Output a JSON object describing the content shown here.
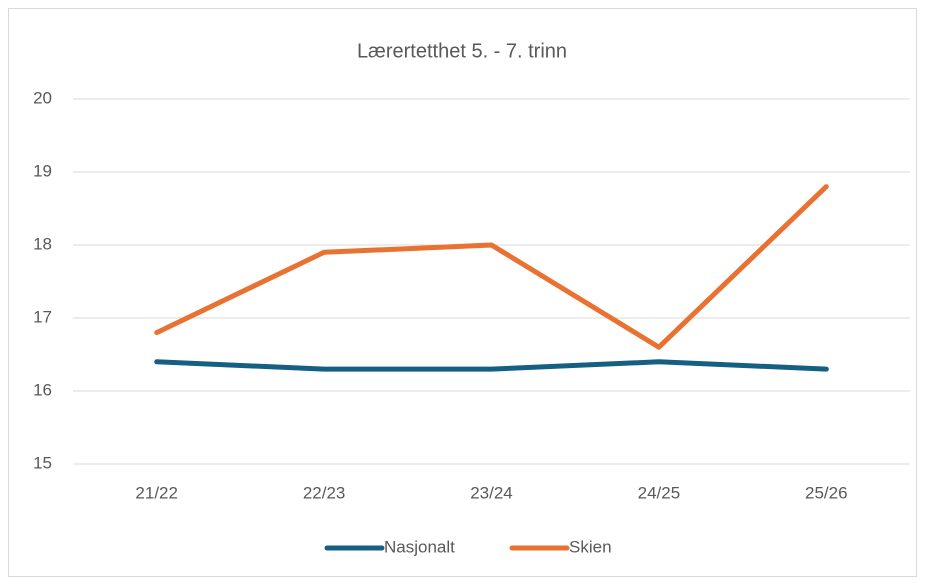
{
  "chart_data": {
    "type": "line",
    "title": "Lærertetthet 5. - 7. trinn",
    "categories": [
      "21/22",
      "22/23",
      "23/24",
      "24/25",
      "25/26"
    ],
    "series": [
      {
        "name": "Nasjonalt",
        "color": "#156082",
        "values": [
          16.4,
          16.3,
          16.3,
          16.4,
          16.3
        ]
      },
      {
        "name": "Skien",
        "color": "#e97132",
        "values": [
          16.8,
          17.9,
          18.0,
          16.6,
          18.8
        ]
      }
    ],
    "ylim": [
      15,
      20
    ],
    "yticks": [
      15,
      16,
      17,
      18,
      19,
      20
    ],
    "grid": true,
    "legend": "bottom"
  }
}
